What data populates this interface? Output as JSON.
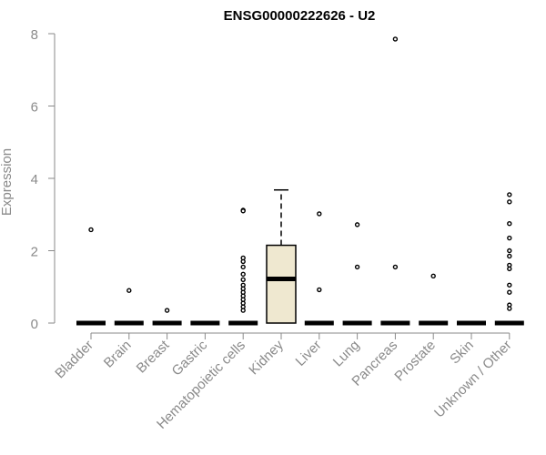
{
  "chart_data": {
    "type": "box",
    "title": "ENSG00000222626 - U2",
    "xlabel": "",
    "ylabel": "Expression",
    "ylim": [
      0,
      8
    ],
    "yticks": [
      0,
      2,
      4,
      6,
      8
    ],
    "grid": false,
    "legend": "none",
    "box_fill": "#efe8d0",
    "categories": [
      "Bladder",
      "Brain",
      "Breast",
      "Gastric",
      "Hematopoietic cells",
      "Kidney",
      "Liver",
      "Lung",
      "Pancreas",
      "Prostate",
      "Skin",
      "Unknown / Other"
    ],
    "boxes": [
      {
        "q1": 0,
        "median": 0,
        "q3": 0,
        "whisker_low": 0,
        "whisker_high": 0,
        "outliers": [
          2.58
        ]
      },
      {
        "q1": 0,
        "median": 0,
        "q3": 0,
        "whisker_low": 0,
        "whisker_high": 0,
        "outliers": [
          0.9
        ]
      },
      {
        "q1": 0,
        "median": 0,
        "q3": 0,
        "whisker_low": 0,
        "whisker_high": 0,
        "outliers": [
          0.35
        ]
      },
      {
        "q1": 0,
        "median": 0,
        "q3": 0,
        "whisker_low": 0,
        "whisker_high": 0,
        "outliers": []
      },
      {
        "q1": 0,
        "median": 0,
        "q3": 0,
        "whisker_low": 0,
        "whisker_high": 0,
        "outliers": [
          3.12,
          3.1,
          1.8,
          1.7,
          1.55,
          1.35,
          1.2,
          1.05,
          0.95,
          0.85,
          0.75,
          0.65,
          0.55,
          0.45,
          0.35
        ]
      },
      {
        "q1": 0,
        "median": 1.22,
        "q3": 2.15,
        "whisker_low": 0,
        "whisker_high": 3.68,
        "outliers": []
      },
      {
        "q1": 0,
        "median": 0,
        "q3": 0,
        "whisker_low": 0,
        "whisker_high": 0,
        "outliers": [
          3.02,
          0.92
        ]
      },
      {
        "q1": 0,
        "median": 0,
        "q3": 0,
        "whisker_low": 0,
        "whisker_high": 0,
        "outliers": [
          2.72,
          1.55
        ]
      },
      {
        "q1": 0,
        "median": 0,
        "q3": 0,
        "whisker_low": 0,
        "whisker_high": 0,
        "outliers": [
          7.85,
          1.55
        ]
      },
      {
        "q1": 0,
        "median": 0,
        "q3": 0,
        "whisker_low": 0,
        "whisker_high": 0,
        "outliers": [
          1.3
        ]
      },
      {
        "q1": 0,
        "median": 0,
        "q3": 0,
        "whisker_low": 0,
        "whisker_high": 0,
        "outliers": []
      },
      {
        "q1": 0,
        "median": 0,
        "q3": 0,
        "whisker_low": 0,
        "whisker_high": 0,
        "outliers": [
          3.55,
          3.35,
          2.75,
          2.35,
          2.0,
          1.85,
          1.6,
          1.5,
          1.05,
          0.85,
          0.5,
          0.4
        ]
      }
    ]
  }
}
